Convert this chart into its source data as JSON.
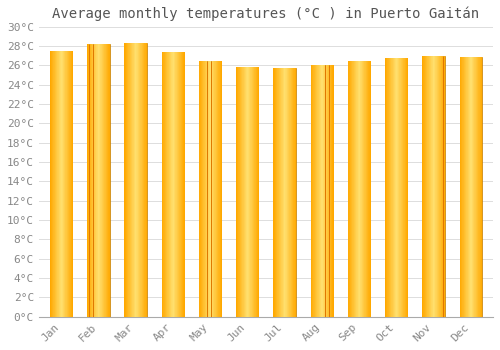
{
  "title": "Average monthly temperatures (°C ) in Puerto Gaitán",
  "months": [
    "Jan",
    "Feb",
    "Mar",
    "Apr",
    "May",
    "Jun",
    "Jul",
    "Aug",
    "Sep",
    "Oct",
    "Nov",
    "Dec"
  ],
  "values": [
    27.5,
    28.2,
    28.3,
    27.4,
    26.5,
    25.8,
    25.7,
    26.0,
    26.5,
    26.8,
    27.0,
    26.9
  ],
  "bar_color_main": "#FFA800",
  "bar_color_light": "#FFD060",
  "bar_color_dark": "#E07800",
  "bar_edge_color": "#CC8800",
  "ylim": [
    0,
    30
  ],
  "ytick_step": 2,
  "background_color": "#ffffff",
  "grid_color": "#dddddd",
  "title_fontsize": 10,
  "tick_fontsize": 8,
  "font_family": "monospace",
  "bar_width": 0.6
}
